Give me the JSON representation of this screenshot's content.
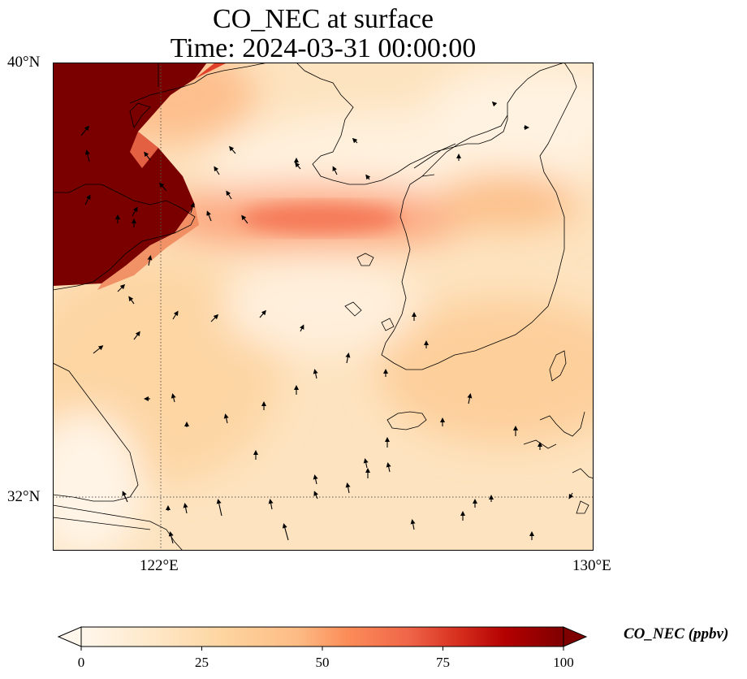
{
  "title": {
    "line1": "CO_NEC at surface",
    "line2": "Time: 2024-03-31 00:00:00"
  },
  "axes": {
    "lat_ticks": [
      "40°N",
      "32°N"
    ],
    "lon_ticks": [
      "122°E",
      "130°E"
    ],
    "lat_range": [
      31,
      40
    ],
    "lon_range": [
      120,
      130
    ],
    "gridlines": "dotted at 122°E and 32°N"
  },
  "colorbar": {
    "label": "CO_NEC (ppbv)",
    "ticks": [
      "0",
      "25",
      "50",
      "75",
      "100"
    ],
    "min": 0,
    "max": 100,
    "extend": "both",
    "colormap": "OrRd",
    "colors": [
      "#fff7ec",
      "#fee8c8",
      "#fdd49e",
      "#fdbb84",
      "#fc8d59",
      "#ef6548",
      "#d7301f",
      "#b30000",
      "#7f0000"
    ]
  },
  "map": {
    "features": [
      "coastlines",
      "wind-vectors"
    ],
    "regions_of_high_concentration": "northwest corner near 40°N 120-122°E exceeding 100 ppbv"
  }
}
